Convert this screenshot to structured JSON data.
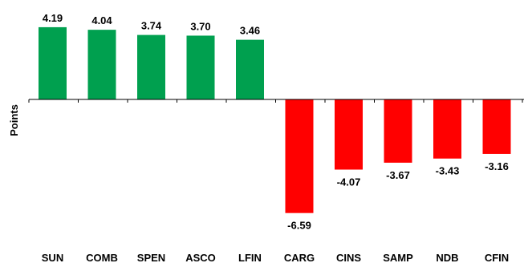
{
  "chart_data": {
    "type": "bar",
    "ylabel": "Points",
    "xlabel": "",
    "title": "",
    "categories": [
      "SUN",
      "COMB",
      "SPEN",
      "ASCO",
      "LFIN",
      "CARG",
      "CINS",
      "SAMP",
      "NDB",
      "CFIN"
    ],
    "values": [
      4.19,
      4.04,
      3.74,
      3.7,
      3.46,
      -6.59,
      -4.07,
      -3.67,
      -3.43,
      -3.16
    ],
    "value_labels": [
      "4.19",
      "4.04",
      "3.74",
      "3.70",
      "3.46",
      "-6.59",
      "-4.07",
      "-3.67",
      "-3.43",
      "-3.16"
    ],
    "ylim": [
      -7.2,
      4.5
    ],
    "grid": false,
    "legend": "none",
    "colors": {
      "positive": "#00a04f",
      "negative": "#ff0000"
    }
  }
}
